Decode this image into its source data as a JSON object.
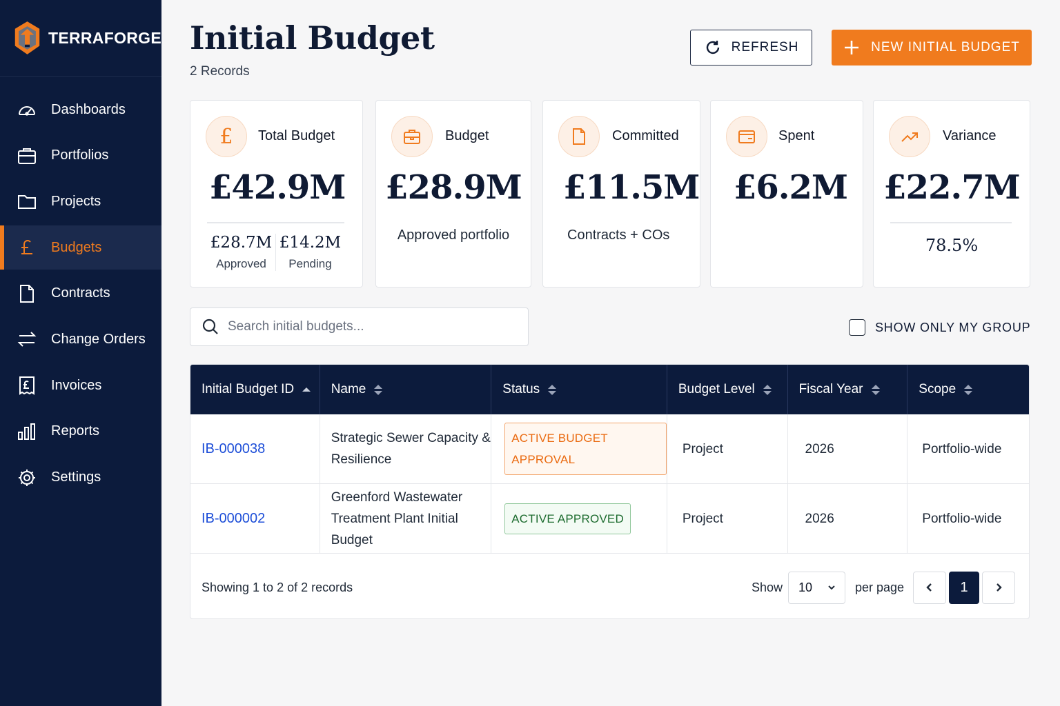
{
  "brand": {
    "name": "TERRAFORGE",
    "logo_icon": "hexagon-arrow-logo",
    "accent": "#f07b1e",
    "navy": "#0c1b3c"
  },
  "sidebar": {
    "items": [
      {
        "label": "Dashboards",
        "icon": "gauge-icon",
        "active": false
      },
      {
        "label": "Portfolios",
        "icon": "briefcase-icon",
        "active": false
      },
      {
        "label": "Projects",
        "icon": "folder-icon",
        "active": false
      },
      {
        "label": "Budgets",
        "icon": "pound-icon",
        "active": true
      },
      {
        "label": "Contracts",
        "icon": "document-icon",
        "active": false
      },
      {
        "label": "Change Orders",
        "icon": "swap-arrows-icon",
        "active": false
      },
      {
        "label": "Invoices",
        "icon": "receipt-icon",
        "active": false
      },
      {
        "label": "Reports",
        "icon": "bar-chart-icon",
        "active": false
      },
      {
        "label": "Settings",
        "icon": "gear-icon",
        "active": false
      }
    ]
  },
  "header": {
    "title": "Initial Budget",
    "record_count": "2 Records",
    "refresh_label": "REFRESH",
    "new_label": "NEW INITIAL BUDGET"
  },
  "kpis": {
    "total": {
      "label": "Total Budget",
      "value": "£42.9M",
      "icon": "pound-icon",
      "approved_amount": "£28.7M",
      "approved_label": "Approved",
      "pending_amount": "£14.2M",
      "pending_label": "Pending"
    },
    "budget": {
      "label": "Budget",
      "value": "£28.9M",
      "sub": "Approved portfolio",
      "icon": "briefcase-icon"
    },
    "committed": {
      "label": "Committed",
      "value": "£11.5M",
      "sub": "Contracts + COs",
      "icon": "document-icon"
    },
    "spent": {
      "label": "Spent",
      "value": "£6.2M",
      "icon": "wallet-icon"
    },
    "variance": {
      "label": "Variance",
      "value": "£22.7M",
      "sub": "78.5%",
      "icon": "trending-up-icon"
    }
  },
  "search": {
    "placeholder": "Search initial budgets..."
  },
  "group_toggle": {
    "label": "SHOW ONLY MY GROUP",
    "checked": false
  },
  "table": {
    "columns": [
      "Initial Budget ID",
      "Name",
      "Status",
      "Budget Level",
      "Fiscal Year",
      "Scope"
    ],
    "rows": [
      {
        "id": "IB-000038",
        "name_line1": "Strategic Sewer Capacity &",
        "name_line2": "Resilience",
        "status": "ACTIVE BUDGET APPROVAL",
        "status_color": "orange",
        "level": "Project",
        "year": "2026",
        "scope": "Portfolio-wide"
      },
      {
        "id": "IB-000002",
        "name_line1": "Greenford Wastewater",
        "name_line2": "Treatment Plant Initial Budget",
        "status": "ACTIVE APPROVED",
        "status_color": "green",
        "level": "Project",
        "year": "2026",
        "scope": "Portfolio-wide"
      }
    ]
  },
  "pagination": {
    "showing": "Showing 1 to 2 of 2 records",
    "show_label": "Show",
    "per_page_value": "10",
    "per_page_label": "per page",
    "current_page": "1"
  }
}
